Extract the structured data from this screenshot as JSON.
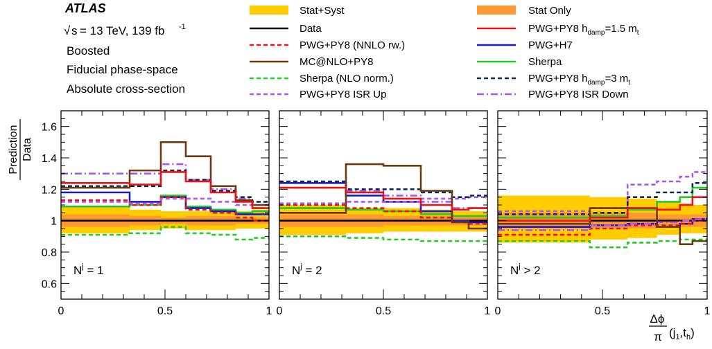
{
  "header": {
    "experiment": "ATLAS",
    "sqrt_s": "s",
    "energy_lumi": "= 13 TeV, 139 fb",
    "lumi_exp": "-1",
    "lines": [
      "Boosted",
      "Fiducial phase-space",
      "Absolute cross-section"
    ]
  },
  "legend": {
    "left": [
      {
        "key": "band",
        "label": "Stat+Syst"
      },
      {
        "key": "data",
        "label": "Data"
      },
      {
        "key": "pwg_nnlo",
        "label": "PWG+PY8 (NNLO rw.)"
      },
      {
        "key": "mcnlo",
        "label": "MC@NLO+PY8"
      },
      {
        "key": "sherpa_nlo",
        "label": "Sherpa (NLO norm.)"
      },
      {
        "key": "isr_up",
        "label": "PWG+PY8 ISR Up"
      }
    ],
    "right": [
      {
        "key": "stat",
        "label": "Stat Only"
      },
      {
        "key": "hdamp15",
        "label": "PWG+PY8 h",
        "sub": "damp",
        "tail": "=1.5 m",
        "tsub": "t"
      },
      {
        "key": "h7",
        "label": "PWG+H7"
      },
      {
        "key": "sherpa",
        "label": "Sherpa"
      },
      {
        "key": "hdamp3",
        "label": "PWG+PY8 h",
        "sub": "damp",
        "tail": "=3 m",
        "tsub": "t"
      },
      {
        "key": "isr_down",
        "label": "PWG+PY8 ISR Down"
      }
    ]
  },
  "styles": {
    "band": {
      "color": "#ffcc00"
    },
    "stat": {
      "color": "#ff9933"
    },
    "data": {
      "color": "#000000",
      "dash": ""
    },
    "pwg_nnlo": {
      "color": "#ee1111",
      "dash": "6,4"
    },
    "mcnlo": {
      "color": "#6b3a10",
      "dash": ""
    },
    "sherpa_nlo": {
      "color": "#22cc22",
      "dash": "6,4"
    },
    "isr_up": {
      "color": "#aa55ee",
      "dash": "6,4"
    },
    "hdamp15": {
      "color": "#ee1111",
      "dash": ""
    },
    "h7": {
      "color": "#1a1acc",
      "dash": ""
    },
    "sherpa": {
      "color": "#22cc22",
      "dash": ""
    },
    "hdamp3": {
      "color": "#0d2a55",
      "dash": "6,4"
    },
    "isr_down": {
      "color": "#aa55ee",
      "dash": "10,4,2,4"
    }
  },
  "axis_labels": {
    "y_num": "Prediction",
    "y_den": "Data",
    "x_num": "Δϕ",
    "x_den": "π",
    "x_args": "(j",
    "x_sub1": "1",
    "x_mid": ",t",
    "x_sub2": "h",
    "x_end": ")"
  },
  "chart_data": [
    {
      "type": "line",
      "label": "N",
      "label_sup": "j",
      "label_rest": " = 1",
      "xlim": [
        0,
        1
      ],
      "ylim": [
        0.5,
        1.7
      ],
      "xticks": [
        0,
        0.5,
        1
      ],
      "xtick_labels": [
        "0",
        "0.5",
        "1"
      ],
      "yticks": [
        0.6,
        0.8,
        1.0,
        1.2,
        1.4,
        1.6
      ],
      "ytick_labels": [
        "0.6",
        "0.8",
        "1",
        "1.2",
        "1.4",
        "1.6"
      ],
      "edges": [
        0,
        0.33,
        0.48,
        0.6,
        0.72,
        0.84,
        0.92,
        1.0
      ],
      "band": {
        "lo": [
          0.92,
          0.94,
          0.95,
          0.94,
          0.94,
          0.95,
          0.95
        ],
        "hi": [
          1.09,
          1.07,
          1.06,
          1.06,
          1.06,
          1.06,
          1.07
        ]
      },
      "stat": {
        "lo": [
          0.96,
          0.97,
          0.98,
          0.97,
          0.97,
          0.98,
          0.98
        ],
        "hi": [
          1.04,
          1.03,
          1.02,
          1.03,
          1.03,
          1.02,
          1.02
        ]
      },
      "series": [
        {
          "key": "data",
          "values": [
            1,
            1,
            1,
            1,
            1,
            1,
            1
          ]
        },
        {
          "key": "sherpa_nlo",
          "values": [
            0.91,
            0.92,
            0.96,
            0.92,
            0.91,
            0.88,
            0.89
          ]
        },
        {
          "key": "sherpa",
          "values": [
            1.09,
            1.1,
            1.16,
            1.09,
            1.07,
            1.05,
            1.06
          ]
        },
        {
          "key": "h7",
          "values": [
            1.18,
            1.12,
            1.15,
            1.08,
            1.06,
            1.04,
            1.04
          ]
        },
        {
          "key": "pwg_nnlo",
          "values": [
            1.13,
            1.1,
            1.15,
            1.07,
            1.05,
            1.02,
            1.0
          ]
        },
        {
          "key": "isr_up",
          "values": [
            1.12,
            1.11,
            1.14,
            1.14,
            1.12,
            1.1,
            1.08
          ]
        },
        {
          "key": "isr_down",
          "values": [
            1.3,
            1.3,
            1.36,
            1.26,
            1.2,
            1.14,
            1.1
          ]
        },
        {
          "key": "hdamp3",
          "values": [
            1.22,
            1.22,
            1.32,
            1.26,
            1.19,
            1.15,
            1.12
          ]
        },
        {
          "key": "mcnlo",
          "values": [
            1.21,
            1.32,
            1.5,
            1.41,
            1.22,
            1.13,
            1.1
          ]
        },
        {
          "key": "hdamp15",
          "values": [
            1.24,
            1.23,
            1.31,
            1.25,
            1.18,
            1.12,
            1.08
          ]
        }
      ]
    },
    {
      "type": "line",
      "label": "N",
      "label_sup": "j",
      "label_rest": " = 2",
      "xlim": [
        0,
        1
      ],
      "ylim": [
        0.5,
        1.7
      ],
      "xticks": [
        0,
        0.5,
        1
      ],
      "xtick_labels": [
        "0",
        "0.5",
        "1"
      ],
      "yticks": [
        0.6,
        0.8,
        1.0,
        1.2,
        1.4,
        1.6
      ],
      "ytick_labels": [],
      "edges": [
        0,
        0.32,
        0.5,
        0.68,
        0.83,
        0.91,
        1.0
      ],
      "band": {
        "lo": [
          0.91,
          0.92,
          0.93,
          0.93,
          0.93,
          0.93
        ],
        "hi": [
          1.1,
          1.08,
          1.08,
          1.07,
          1.06,
          1.06
        ]
      },
      "stat": {
        "lo": [
          0.96,
          0.96,
          0.97,
          0.97,
          0.97,
          0.97
        ],
        "hi": [
          1.04,
          1.04,
          1.03,
          1.03,
          1.03,
          1.03
        ]
      },
      "series": [
        {
          "key": "data",
          "values": [
            1,
            1,
            1,
            1,
            1,
            1
          ]
        },
        {
          "key": "sherpa_nlo",
          "values": [
            0.9,
            0.89,
            0.88,
            0.87,
            0.87,
            0.87
          ]
        },
        {
          "key": "sherpa",
          "values": [
            1.08,
            1.07,
            1.06,
            1.04,
            1.03,
            1.03
          ]
        },
        {
          "key": "h7",
          "values": [
            1.24,
            1.16,
            1.12,
            1.06,
            1.0,
            0.99
          ]
        },
        {
          "key": "pwg_nnlo",
          "values": [
            1.1,
            1.08,
            1.06,
            1.02,
            0.99,
            0.98
          ]
        },
        {
          "key": "isr_up",
          "values": [
            1.11,
            1.12,
            1.12,
            1.14,
            1.14,
            1.15
          ]
        },
        {
          "key": "isr_down",
          "values": [
            1.21,
            1.19,
            1.16,
            1.12,
            1.08,
            1.08
          ]
        },
        {
          "key": "hdamp3",
          "values": [
            1.25,
            1.2,
            1.2,
            1.18,
            1.15,
            1.16
          ]
        },
        {
          "key": "mcnlo",
          "values": [
            1.05,
            1.36,
            1.35,
            1.19,
            0.99,
            0.95
          ]
        },
        {
          "key": "hdamp15",
          "values": [
            1.21,
            1.18,
            1.14,
            1.1,
            1.07,
            1.08
          ]
        }
      ]
    },
    {
      "type": "line",
      "label": "N",
      "label_sup": "j",
      "label_rest": " > 2",
      "xlim": [
        0,
        1
      ],
      "ylim": [
        0.5,
        1.7
      ],
      "xticks": [
        0,
        0.5,
        1
      ],
      "xtick_labels": [
        "0",
        "0.5",
        "1"
      ],
      "yticks": [
        0.6,
        0.8,
        1.0,
        1.2,
        1.4,
        1.6
      ],
      "ytick_labels": [],
      "edges": [
        0,
        0.44,
        0.62,
        0.76,
        0.87,
        0.93,
        1.0
      ],
      "band": {
        "lo": [
          0.86,
          0.88,
          0.89,
          0.91,
          0.92,
          0.92
        ],
        "hi": [
          1.16,
          1.15,
          1.14,
          1.12,
          1.11,
          1.1
        ]
      },
      "stat": {
        "lo": [
          0.95,
          0.95,
          0.95,
          0.96,
          0.96,
          0.96
        ],
        "hi": [
          1.05,
          1.05,
          1.05,
          1.04,
          1.04,
          1.04
        ]
      },
      "series": [
        {
          "key": "data",
          "values": [
            1,
            1,
            1,
            1,
            1,
            1
          ]
        },
        {
          "key": "sherpa_nlo",
          "values": [
            0.87,
            0.83,
            0.86,
            0.87,
            0.88,
            0.88
          ]
        },
        {
          "key": "sherpa",
          "values": [
            1.02,
            1.03,
            1.07,
            1.12,
            1.15,
            1.21
          ]
        },
        {
          "key": "h7",
          "values": [
            0.96,
            0.97,
            0.98,
            0.96,
            0.98,
            1.01
          ]
        },
        {
          "key": "pwg_nnlo",
          "values": [
            0.91,
            0.95,
            0.97,
            0.97,
            0.98,
            1.0
          ]
        },
        {
          "key": "isr_up",
          "values": [
            1.06,
            1.08,
            1.23,
            1.25,
            1.28,
            1.31
          ]
        },
        {
          "key": "isr_down",
          "values": [
            0.94,
            0.97,
            0.98,
            0.99,
            1.0,
            1.01
          ]
        },
        {
          "key": "hdamp3",
          "values": [
            1.04,
            1.05,
            1.15,
            1.18,
            1.18,
            1.24
          ]
        },
        {
          "key": "mcnlo",
          "values": [
            0.98,
            1.08,
            1.08,
            0.96,
            0.85,
            0.87
          ]
        },
        {
          "key": "hdamp15",
          "values": [
            1.0,
            1.02,
            1.08,
            1.07,
            1.1,
            1.15
          ]
        }
      ]
    }
  ]
}
